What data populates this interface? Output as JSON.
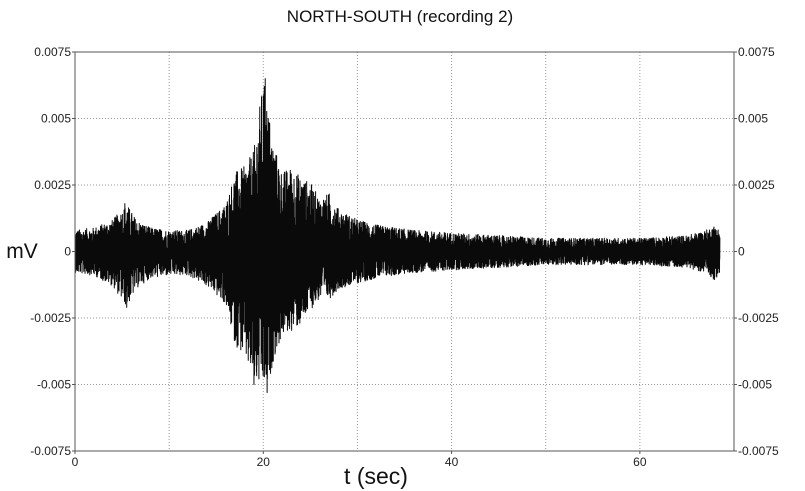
{
  "chart_data": {
    "type": "line",
    "title": "NORTH-SOUTH (recording 2)",
    "xlabel": "t (sec)",
    "ylabel": "mV",
    "xlim": [
      0,
      70
    ],
    "ylim": [
      -0.0075,
      0.0075
    ],
    "x_ticks": [
      {
        "value": 0,
        "label": "0"
      },
      {
        "value": 20,
        "label": "20"
      },
      {
        "value": 40,
        "label": "40"
      },
      {
        "value": 60,
        "label": "60"
      }
    ],
    "y_ticks": [
      {
        "value": 0.0075,
        "label": "0.0075"
      },
      {
        "value": 0.005,
        "label": "0.005"
      },
      {
        "value": 0.0025,
        "label": "0.0025"
      },
      {
        "value": 0,
        "label": "0"
      },
      {
        "value": -0.0025,
        "label": "-0.0025"
      },
      {
        "value": -0.005,
        "label": "-0.005"
      },
      {
        "value": -0.0075,
        "label": "-0.0075"
      }
    ],
    "grid": true,
    "y_axis_mirrored_right": true,
    "series_color": "#0a0a0a",
    "series": [
      {
        "t_end": 68.5,
        "envelope": {
          "t": [
            0,
            2,
            4,
            5.5,
            6.5,
            8,
            10,
            12,
            14,
            16,
            17,
            18,
            19,
            20,
            20.5,
            21,
            22,
            23,
            24,
            25,
            26,
            27,
            28,
            30,
            32,
            34,
            36,
            40,
            45,
            50,
            55,
            60,
            65,
            67,
            68,
            68.5
          ],
          "pos": [
            0.0008,
            0.0009,
            0.0012,
            0.0018,
            0.0012,
            0.0009,
            0.0008,
            0.0008,
            0.0011,
            0.0018,
            0.003,
            0.0032,
            0.0038,
            0.0065,
            0.0055,
            0.0042,
            0.003,
            0.0032,
            0.0028,
            0.0026,
            0.002,
            0.0022,
            0.0016,
            0.0012,
            0.001,
            0.0009,
            0.0008,
            0.0007,
            0.0006,
            0.0005,
            0.0005,
            0.0005,
            0.0006,
            0.0008,
            0.001,
            0.0008
          ],
          "neg": [
            -0.0008,
            -0.0009,
            -0.0013,
            -0.0021,
            -0.0014,
            -0.001,
            -0.0009,
            -0.0009,
            -0.0013,
            -0.002,
            -0.0035,
            -0.004,
            -0.005,
            -0.0052,
            -0.0053,
            -0.0042,
            -0.0032,
            -0.003,
            -0.0028,
            -0.0022,
            -0.0018,
            -0.0018,
            -0.0014,
            -0.0012,
            -0.001,
            -0.0009,
            -0.0008,
            -0.0007,
            -0.0006,
            -0.0005,
            -0.0005,
            -0.0005,
            -0.0006,
            -0.0008,
            -0.0011,
            -0.0008
          ]
        },
        "peaks": [
          {
            "t": 20.2,
            "value": 0.0065
          },
          {
            "t": 20.4,
            "value": -0.0053
          },
          {
            "t": 19.0,
            "value": -0.005
          },
          {
            "t": 5.5,
            "value": -0.0021
          },
          {
            "t": 5.3,
            "value": 0.0018
          }
        ]
      }
    ]
  }
}
